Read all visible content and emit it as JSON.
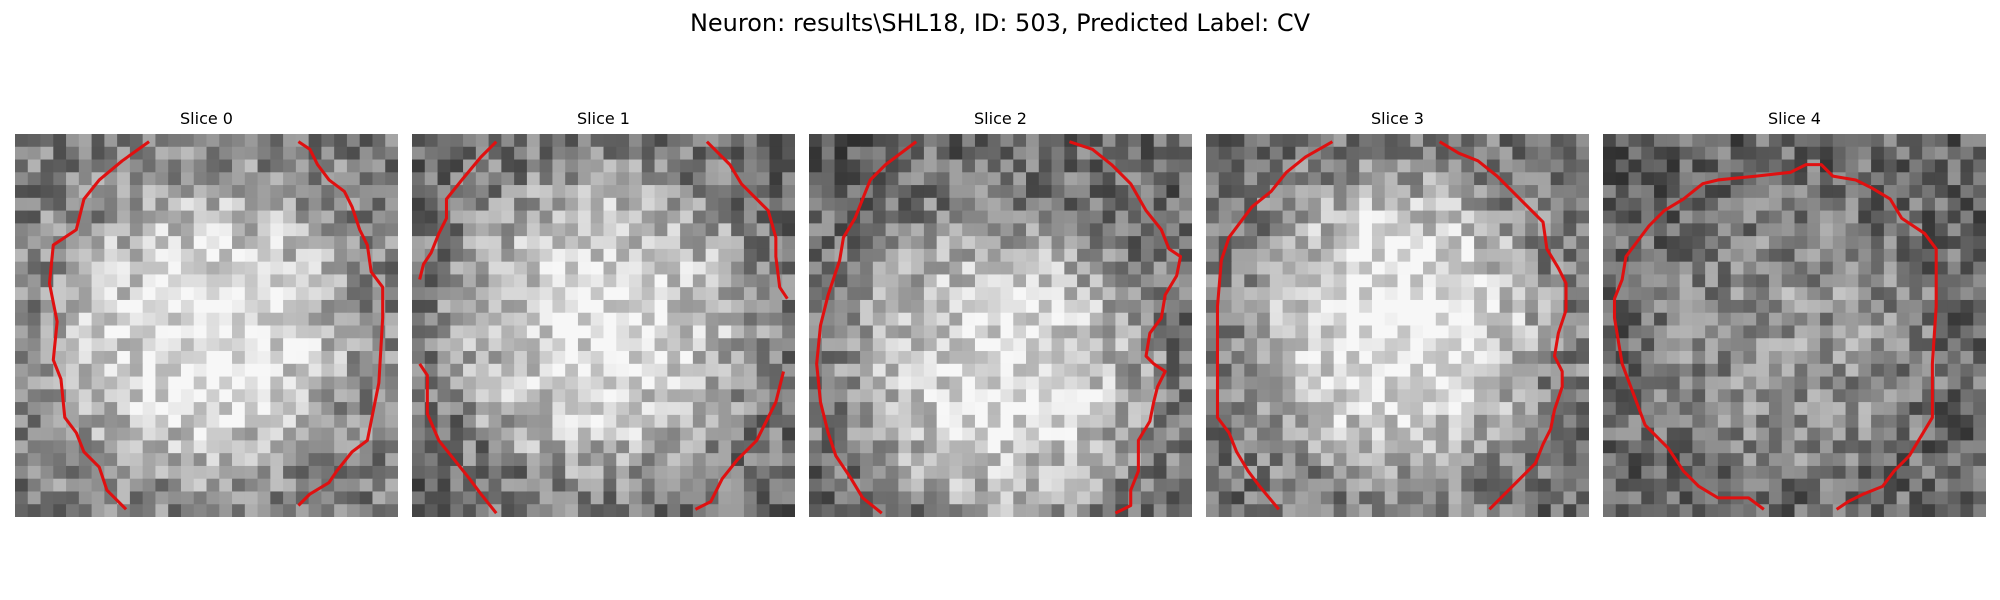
{
  "figure": {
    "title": "Neuron: results\\SHL18, ID: 503, Predicted Label: CV",
    "contour_color": "#e01010",
    "grid_size": 30
  },
  "panels": [
    {
      "title": "Slice 0",
      "seed": 11,
      "bias": 0.62,
      "center": [
        0.5,
        0.52
      ],
      "radius": 0.4,
      "contrast": 0.3,
      "contour": [
        [
          0.35,
          0.02
        ],
        [
          0.28,
          0.07
        ],
        [
          0.22,
          0.12
        ],
        [
          0.18,
          0.17
        ],
        [
          0.16,
          0.25
        ],
        [
          0.1,
          0.29
        ],
        [
          0.09,
          0.39
        ],
        [
          0.11,
          0.49
        ],
        [
          0.1,
          0.59
        ],
        [
          0.12,
          0.64
        ],
        [
          0.13,
          0.74
        ],
        [
          0.16,
          0.78
        ],
        [
          0.18,
          0.83
        ],
        [
          0.22,
          0.87
        ],
        [
          0.24,
          0.93
        ],
        [
          0.29,
          0.98
        ]
      ],
      "contour2": [
        [
          0.74,
          0.02
        ],
        [
          0.77,
          0.04
        ],
        [
          0.79,
          0.08
        ],
        [
          0.82,
          0.12
        ],
        [
          0.86,
          0.15
        ],
        [
          0.88,
          0.19
        ],
        [
          0.9,
          0.25
        ],
        [
          0.92,
          0.29
        ],
        [
          0.93,
          0.36
        ],
        [
          0.96,
          0.4
        ],
        [
          0.96,
          0.48
        ],
        [
          0.95,
          0.65
        ],
        [
          0.94,
          0.7
        ],
        [
          0.93,
          0.75
        ],
        [
          0.92,
          0.8
        ],
        [
          0.88,
          0.83
        ],
        [
          0.84,
          0.88
        ],
        [
          0.82,
          0.91
        ],
        [
          0.77,
          0.94
        ],
        [
          0.74,
          0.97
        ]
      ]
    },
    {
      "title": "Slice 1",
      "seed": 23,
      "bias": 0.55,
      "center": [
        0.5,
        0.5
      ],
      "radius": 0.44,
      "contrast": 0.34,
      "contour": [
        [
          0.22,
          0.02
        ],
        [
          0.18,
          0.06
        ],
        [
          0.13,
          0.12
        ],
        [
          0.09,
          0.17
        ],
        [
          0.09,
          0.22
        ],
        [
          0.07,
          0.26
        ],
        [
          0.05,
          0.31
        ],
        [
          0.03,
          0.34
        ],
        [
          0.02,
          0.38
        ]
      ],
      "contour2": [
        [
          0.77,
          0.02
        ],
        [
          0.8,
          0.05
        ],
        [
          0.83,
          0.08
        ],
        [
          0.86,
          0.13
        ],
        [
          0.9,
          0.17
        ],
        [
          0.93,
          0.2
        ],
        [
          0.95,
          0.27
        ],
        [
          0.95,
          0.32
        ],
        [
          0.96,
          0.4
        ],
        [
          0.98,
          0.43
        ]
      ],
      "contour3": [
        [
          0.02,
          0.6
        ],
        [
          0.04,
          0.63
        ],
        [
          0.04,
          0.73
        ],
        [
          0.07,
          0.8
        ],
        [
          0.11,
          0.85
        ],
        [
          0.15,
          0.9
        ],
        [
          0.18,
          0.94
        ],
        [
          0.22,
          0.99
        ]
      ],
      "contour4": [
        [
          0.74,
          0.98
        ],
        [
          0.78,
          0.96
        ],
        [
          0.81,
          0.9
        ],
        [
          0.85,
          0.85
        ],
        [
          0.9,
          0.8
        ],
        [
          0.93,
          0.74
        ],
        [
          0.95,
          0.7
        ],
        [
          0.97,
          0.62
        ]
      ]
    },
    {
      "title": "Slice 2",
      "seed": 37,
      "bias": 0.55,
      "center": [
        0.5,
        0.62
      ],
      "radius": 0.42,
      "contrast": 0.34,
      "contour": [
        [
          0.28,
          0.02
        ],
        [
          0.24,
          0.05
        ],
        [
          0.2,
          0.08
        ],
        [
          0.16,
          0.12
        ],
        [
          0.14,
          0.17
        ],
        [
          0.12,
          0.22
        ],
        [
          0.09,
          0.27
        ],
        [
          0.08,
          0.33
        ],
        [
          0.05,
          0.42
        ],
        [
          0.03,
          0.5
        ],
        [
          0.02,
          0.6
        ],
        [
          0.03,
          0.7
        ],
        [
          0.05,
          0.78
        ],
        [
          0.07,
          0.84
        ],
        [
          0.11,
          0.9
        ],
        [
          0.14,
          0.95
        ],
        [
          0.19,
          0.99
        ]
      ],
      "contour2": [
        [
          0.68,
          0.02
        ],
        [
          0.74,
          0.04
        ],
        [
          0.79,
          0.08
        ],
        [
          0.84,
          0.13
        ],
        [
          0.88,
          0.2
        ],
        [
          0.92,
          0.25
        ],
        [
          0.94,
          0.3
        ],
        [
          0.97,
          0.32
        ],
        [
          0.96,
          0.37
        ],
        [
          0.93,
          0.42
        ],
        [
          0.92,
          0.48
        ],
        [
          0.89,
          0.52
        ],
        [
          0.88,
          0.58
        ],
        [
          0.9,
          0.6
        ],
        [
          0.93,
          0.62
        ],
        [
          0.91,
          0.66
        ],
        [
          0.9,
          0.7
        ],
        [
          0.89,
          0.75
        ],
        [
          0.86,
          0.8
        ],
        [
          0.86,
          0.88
        ],
        [
          0.84,
          0.93
        ],
        [
          0.84,
          0.97
        ],
        [
          0.8,
          0.99
        ]
      ]
    },
    {
      "title": "Slice 3",
      "seed": 53,
      "bias": 0.6,
      "center": [
        0.5,
        0.5
      ],
      "radius": 0.4,
      "contrast": 0.36,
      "contour": [
        [
          0.33,
          0.02
        ],
        [
          0.26,
          0.06
        ],
        [
          0.21,
          0.1
        ],
        [
          0.17,
          0.15
        ],
        [
          0.12,
          0.19
        ],
        [
          0.09,
          0.23
        ],
        [
          0.06,
          0.27
        ],
        [
          0.04,
          0.33
        ],
        [
          0.03,
          0.45
        ],
        [
          0.03,
          0.6
        ],
        [
          0.03,
          0.74
        ],
        [
          0.06,
          0.78
        ],
        [
          0.08,
          0.83
        ],
        [
          0.11,
          0.88
        ],
        [
          0.14,
          0.92
        ],
        [
          0.19,
          0.98
        ]
      ],
      "contour2": [
        [
          0.61,
          0.02
        ],
        [
          0.66,
          0.05
        ],
        [
          0.71,
          0.07
        ],
        [
          0.76,
          0.11
        ],
        [
          0.8,
          0.15
        ],
        [
          0.84,
          0.19
        ],
        [
          0.88,
          0.23
        ],
        [
          0.89,
          0.3
        ],
        [
          0.92,
          0.35
        ],
        [
          0.94,
          0.39
        ],
        [
          0.94,
          0.46
        ],
        [
          0.92,
          0.52
        ],
        [
          0.91,
          0.58
        ],
        [
          0.93,
          0.62
        ],
        [
          0.93,
          0.66
        ],
        [
          0.91,
          0.72
        ],
        [
          0.9,
          0.77
        ],
        [
          0.88,
          0.81
        ],
        [
          0.86,
          0.86
        ],
        [
          0.83,
          0.89
        ],
        [
          0.79,
          0.93
        ],
        [
          0.74,
          0.98
        ]
      ]
    },
    {
      "title": "Slice 4",
      "seed": 71,
      "bias": 0.45,
      "center": [
        0.5,
        0.55
      ],
      "radius": 0.4,
      "contrast": 0.14,
      "contour": [
        [
          0.42,
          0.98
        ],
        [
          0.38,
          0.95
        ],
        [
          0.3,
          0.95
        ],
        [
          0.25,
          0.92
        ],
        [
          0.21,
          0.88
        ],
        [
          0.17,
          0.82
        ],
        [
          0.11,
          0.76
        ],
        [
          0.08,
          0.68
        ],
        [
          0.05,
          0.6
        ],
        [
          0.03,
          0.48
        ],
        [
          0.03,
          0.43
        ],
        [
          0.05,
          0.38
        ],
        [
          0.06,
          0.32
        ],
        [
          0.09,
          0.28
        ],
        [
          0.12,
          0.24
        ],
        [
          0.16,
          0.2
        ],
        [
          0.21,
          0.17
        ],
        [
          0.26,
          0.13
        ],
        [
          0.3,
          0.12
        ],
        [
          0.4,
          0.11
        ],
        [
          0.49,
          0.1
        ],
        [
          0.53,
          0.08
        ],
        [
          0.57,
          0.08
        ],
        [
          0.6,
          0.11
        ],
        [
          0.66,
          0.12
        ],
        [
          0.7,
          0.14
        ],
        [
          0.75,
          0.17
        ],
        [
          0.78,
          0.22
        ],
        [
          0.84,
          0.26
        ],
        [
          0.87,
          0.3
        ],
        [
          0.87,
          0.45
        ],
        [
          0.86,
          0.6
        ],
        [
          0.86,
          0.74
        ],
        [
          0.83,
          0.79
        ],
        [
          0.8,
          0.84
        ],
        [
          0.76,
          0.88
        ],
        [
          0.73,
          0.92
        ],
        [
          0.68,
          0.94
        ],
        [
          0.64,
          0.96
        ],
        [
          0.61,
          0.98
        ]
      ]
    }
  ]
}
